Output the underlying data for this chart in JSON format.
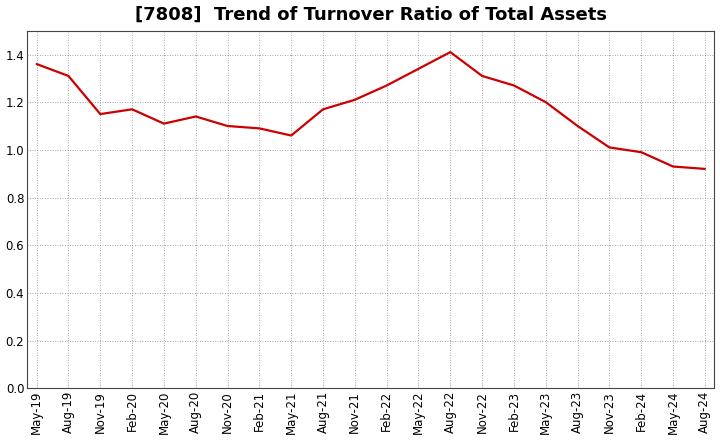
{
  "title": "[7808]  Trend of Turnover Ratio of Total Assets",
  "x_labels": [
    "May-19",
    "Aug-19",
    "Nov-19",
    "Feb-20",
    "May-20",
    "Aug-20",
    "Nov-20",
    "Feb-21",
    "May-21",
    "Aug-21",
    "Nov-21",
    "Feb-22",
    "May-22",
    "Aug-22",
    "Nov-22",
    "Feb-23",
    "May-23",
    "Aug-23",
    "Nov-23",
    "Feb-24",
    "May-24",
    "Aug-24"
  ],
  "y_values": [
    1.36,
    1.31,
    1.15,
    1.17,
    1.11,
    1.14,
    1.1,
    1.09,
    1.06,
    1.17,
    1.21,
    1.27,
    1.34,
    1.41,
    1.31,
    1.27,
    1.2,
    1.1,
    1.01,
    0.99,
    0.93,
    0.92
  ],
  "line_color": "#cc0000",
  "line_width": 1.6,
  "ylim": [
    0.0,
    1.5
  ],
  "yticks": [
    0.0,
    0.2,
    0.4,
    0.6,
    0.8,
    1.0,
    1.2,
    1.4
  ],
  "grid_color": "#888888",
  "background_color": "#ffffff",
  "title_fontsize": 13,
  "title_fontweight": "bold",
  "tick_fontsize": 8.5
}
